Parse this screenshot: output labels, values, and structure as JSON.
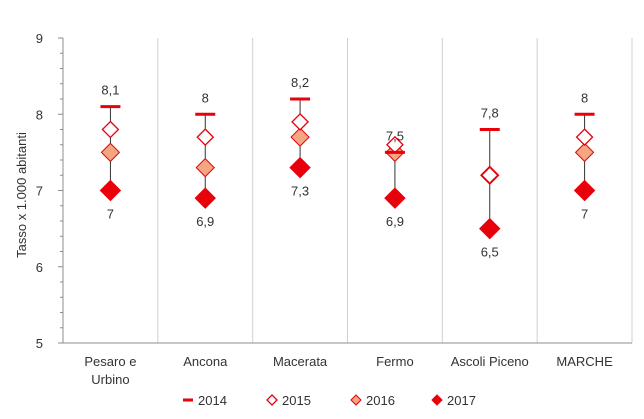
{
  "chart_data": {
    "type": "scatter",
    "title": "",
    "ylabel": "Tasso x 1.000 abitanti",
    "xlabel": "",
    "ylim": [
      5,
      9
    ],
    "yticks": [
      "5",
      "6",
      "7",
      "8",
      "9"
    ],
    "grid": "vertical category separators",
    "legend_position": "bottom",
    "categories": [
      "Pesaro e Urbino",
      "Ancona",
      "Macerata",
      "Fermo",
      "Ascoli Piceno",
      "MARCHE"
    ],
    "category_label_lines": [
      [
        "Pesaro e",
        "Urbino"
      ],
      [
        "Ancona"
      ],
      [
        "Macerata"
      ],
      [
        "Fermo"
      ],
      [
        "Ascoli Piceno"
      ],
      [
        "MARCHE"
      ]
    ],
    "series": [
      {
        "name": "2014",
        "marker": "dash",
        "color": "#e8000b",
        "values": [
          8.1,
          8.0,
          8.2,
          7.5,
          7.8,
          8.0
        ]
      },
      {
        "name": "2015",
        "marker": "diamond-open",
        "color": "#e8000b",
        "values": [
          7.8,
          7.7,
          7.9,
          7.6,
          7.2,
          7.7
        ]
      },
      {
        "name": "2016",
        "marker": "diamond-light",
        "color": "#f4a582",
        "values": [
          7.5,
          7.3,
          7.7,
          7.5,
          7.2,
          7.5
        ]
      },
      {
        "name": "2017",
        "marker": "diamond-filled",
        "color": "#e8000b",
        "values": [
          7.0,
          6.9,
          7.3,
          6.9,
          6.5,
          7.0
        ]
      }
    ],
    "data_labels": {
      "2014": [
        "8,1",
        "8",
        "8,2",
        "7,5",
        "7,8",
        "8"
      ],
      "2017": [
        "7",
        "6,9",
        "7,3",
        "6,9",
        "6,5",
        "7"
      ]
    },
    "range_line_color": "#333333"
  }
}
